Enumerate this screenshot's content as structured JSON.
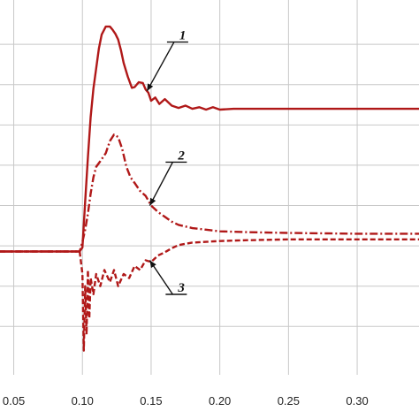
{
  "chart_data": {
    "type": "line",
    "title": "",
    "xlabel": "",
    "ylabel": "",
    "xlim": [
      0.04,
      0.345
    ],
    "ylim": [
      -1.6,
      3.05
    ],
    "grid": true,
    "x_ticks": [
      "0.05",
      "0.10",
      "0.15",
      "0.20",
      "0.25",
      "0.30"
    ],
    "x_tick_values": [
      0.05,
      0.1,
      0.15,
      0.2,
      0.25,
      0.3
    ],
    "y_grid_values": [
      -1.0,
      -0.5,
      0.0,
      0.5,
      1.0,
      1.5,
      2.0,
      2.5
    ],
    "color": "#b01818",
    "series": [
      {
        "name": "1",
        "dash": "solid",
        "points": [
          [
            0.04,
            -0.07
          ],
          [
            0.098,
            -0.07
          ],
          [
            0.1,
            -0.02
          ],
          [
            0.102,
            0.55
          ],
          [
            0.104,
            1.1
          ],
          [
            0.106,
            1.6
          ],
          [
            0.108,
            1.95
          ],
          [
            0.11,
            2.2
          ],
          [
            0.112,
            2.45
          ],
          [
            0.114,
            2.62
          ],
          [
            0.117,
            2.72
          ],
          [
            0.12,
            2.72
          ],
          [
            0.122,
            2.68
          ],
          [
            0.124,
            2.63
          ],
          [
            0.126,
            2.56
          ],
          [
            0.128,
            2.43
          ],
          [
            0.13,
            2.27
          ],
          [
            0.133,
            2.1
          ],
          [
            0.136,
            1.96
          ],
          [
            0.138,
            1.97
          ],
          [
            0.141,
            2.03
          ],
          [
            0.144,
            2.02
          ],
          [
            0.146,
            1.94
          ],
          [
            0.148,
            1.9
          ],
          [
            0.15,
            1.8
          ],
          [
            0.153,
            1.84
          ],
          [
            0.156,
            1.76
          ],
          [
            0.16,
            1.82
          ],
          [
            0.165,
            1.74
          ],
          [
            0.17,
            1.71
          ],
          [
            0.175,
            1.74
          ],
          [
            0.18,
            1.7
          ],
          [
            0.185,
            1.72
          ],
          [
            0.19,
            1.69
          ],
          [
            0.195,
            1.72
          ],
          [
            0.2,
            1.69
          ],
          [
            0.21,
            1.7
          ],
          [
            0.22,
            1.7
          ],
          [
            0.25,
            1.7
          ],
          [
            0.3,
            1.7
          ],
          [
            0.345,
            1.7
          ]
        ]
      },
      {
        "name": "2",
        "dash": "dash-dot",
        "points": [
          [
            0.04,
            -0.07
          ],
          [
            0.098,
            -0.07
          ],
          [
            0.1,
            0.05
          ],
          [
            0.102,
            0.2
          ],
          [
            0.104,
            0.4
          ],
          [
            0.106,
            0.65
          ],
          [
            0.108,
            0.85
          ],
          [
            0.11,
            0.98
          ],
          [
            0.113,
            1.05
          ],
          [
            0.117,
            1.15
          ],
          [
            0.12,
            1.3
          ],
          [
            0.123,
            1.38
          ],
          [
            0.126,
            1.35
          ],
          [
            0.129,
            1.2
          ],
          [
            0.132,
            0.98
          ],
          [
            0.135,
            0.85
          ],
          [
            0.138,
            0.78
          ],
          [
            0.142,
            0.68
          ],
          [
            0.146,
            0.62
          ],
          [
            0.15,
            0.5
          ],
          [
            0.155,
            0.42
          ],
          [
            0.16,
            0.36
          ],
          [
            0.165,
            0.3
          ],
          [
            0.17,
            0.26
          ],
          [
            0.18,
            0.22
          ],
          [
            0.19,
            0.2
          ],
          [
            0.2,
            0.18
          ],
          [
            0.22,
            0.17
          ],
          [
            0.25,
            0.16
          ],
          [
            0.3,
            0.15
          ],
          [
            0.345,
            0.15
          ]
        ]
      },
      {
        "name": "3",
        "dash": "dashed",
        "points": [
          [
            0.04,
            -0.07
          ],
          [
            0.098,
            -0.07
          ],
          [
            0.1,
            -0.35
          ],
          [
            0.101,
            -1.3
          ],
          [
            0.102,
            -0.5
          ],
          [
            0.103,
            -1.1
          ],
          [
            0.104,
            -0.3
          ],
          [
            0.105,
            -0.9
          ],
          [
            0.106,
            -0.4
          ],
          [
            0.108,
            -0.6
          ],
          [
            0.11,
            -0.35
          ],
          [
            0.113,
            -0.5
          ],
          [
            0.116,
            -0.3
          ],
          [
            0.12,
            -0.45
          ],
          [
            0.123,
            -0.3
          ],
          [
            0.126,
            -0.5
          ],
          [
            0.13,
            -0.35
          ],
          [
            0.134,
            -0.4
          ],
          [
            0.138,
            -0.25
          ],
          [
            0.142,
            -0.3
          ],
          [
            0.146,
            -0.18
          ],
          [
            0.15,
            -0.2
          ],
          [
            0.155,
            -0.12
          ],
          [
            0.16,
            -0.08
          ],
          [
            0.165,
            -0.03
          ],
          [
            0.17,
            0.01
          ],
          [
            0.18,
            0.04
          ],
          [
            0.19,
            0.05
          ],
          [
            0.2,
            0.06
          ],
          [
            0.22,
            0.07
          ],
          [
            0.25,
            0.08
          ],
          [
            0.3,
            0.08
          ],
          [
            0.345,
            0.08
          ]
        ]
      }
    ],
    "annotations": [
      {
        "text": "1",
        "series": "1",
        "at": [
          0.147,
          1.92
        ],
        "label_at": [
          0.168,
          2.55
        ]
      },
      {
        "text": "2",
        "series": "2",
        "at": [
          0.149,
          0.5
        ],
        "label_at": [
          0.167,
          1.06
        ]
      },
      {
        "text": "3",
        "series": "3",
        "at": [
          0.149,
          -0.18
        ],
        "label_at": [
          0.167,
          -0.58
        ]
      }
    ]
  }
}
